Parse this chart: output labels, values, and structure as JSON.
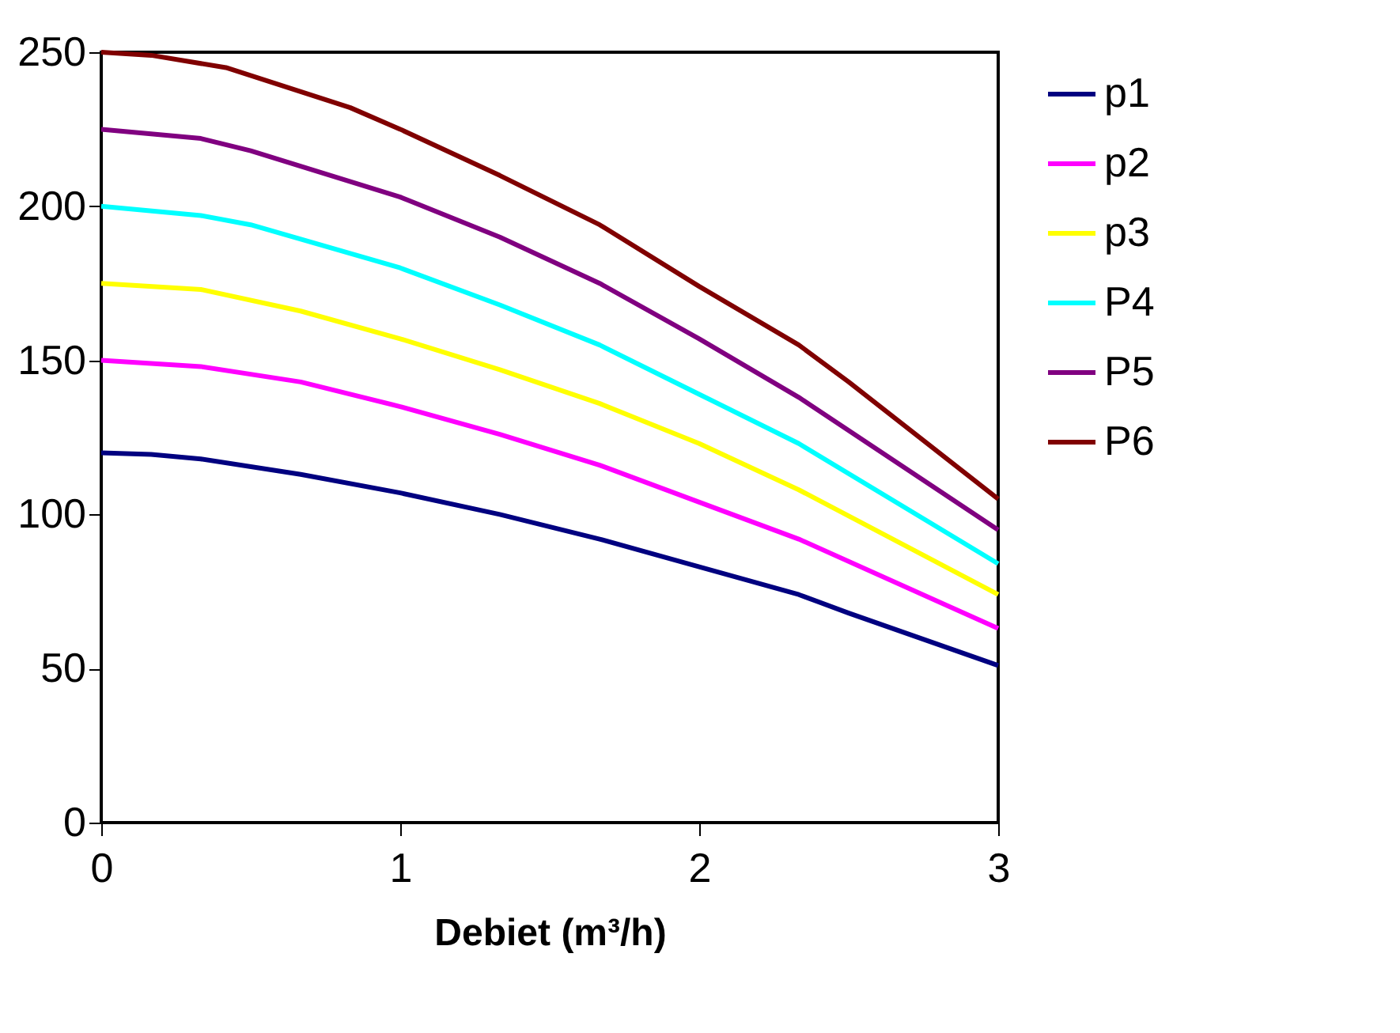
{
  "chart_data": {
    "type": "line",
    "xlabel": "Debiet (m³/h)",
    "xlim": [
      0,
      3
    ],
    "xticks": [
      0,
      1,
      2,
      3
    ],
    "ylim": [
      0,
      250
    ],
    "yticks": [
      0,
      50,
      100,
      150,
      200,
      250
    ],
    "grid": false,
    "legend": "right",
    "marker": "none",
    "line_style": "solid",
    "series": [
      {
        "name": "p1",
        "color": "#000080",
        "x": [
          0,
          0.167,
          0.333,
          0.667,
          1,
          1.333,
          1.667,
          2,
          2.333,
          2.5,
          3
        ],
        "values": [
          120,
          119.5,
          118,
          113,
          107,
          100,
          92,
          83,
          74,
          68,
          51
        ]
      },
      {
        "name": "p2",
        "color": "#ff00ff",
        "x": [
          0,
          0.333,
          0.667,
          1,
          1.333,
          1.667,
          2,
          2.333,
          3
        ],
        "values": [
          150,
          148,
          143,
          135,
          126,
          116,
          104,
          92,
          63
        ]
      },
      {
        "name": "p3",
        "color": "#ffff00",
        "x": [
          0,
          0.333,
          0.667,
          1,
          1.333,
          1.667,
          2,
          2.333,
          3
        ],
        "values": [
          175,
          173,
          166,
          157,
          147,
          136,
          123,
          108,
          74
        ]
      },
      {
        "name": "P4",
        "color": "#00ffff",
        "x": [
          0,
          0.333,
          0.5,
          1,
          1.333,
          1.667,
          2,
          2.333,
          3
        ],
        "values": [
          200,
          197,
          194,
          180,
          168,
          155,
          139,
          123,
          84
        ]
      },
      {
        "name": "P5",
        "color": "#800080",
        "x": [
          0,
          0.333,
          0.5,
          1,
          1.333,
          1.667,
          2,
          2.333,
          3
        ],
        "values": [
          225,
          222,
          218,
          203,
          190,
          175,
          157,
          138,
          95
        ]
      },
      {
        "name": "P6",
        "color": "#800000",
        "x": [
          0,
          0.167,
          0.417,
          0.833,
          1,
          1.333,
          1.667,
          2,
          2.333,
          2.5,
          3
        ],
        "values": [
          250,
          249,
          245,
          232,
          225,
          210,
          194,
          174,
          155,
          143,
          105
        ]
      }
    ]
  }
}
